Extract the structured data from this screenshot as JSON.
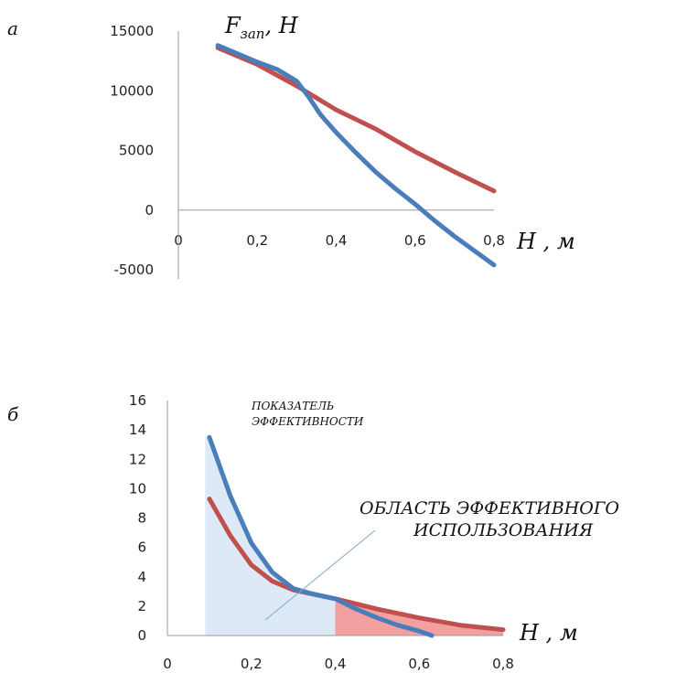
{
  "chart_data": [
    {
      "type": "line",
      "panel_label": "а",
      "ylabel_main": "F",
      "ylabel_sub": "зап",
      "ylabel_unit": ", Н",
      "xlabel": "H , м",
      "xlim": [
        0,
        0.8
      ],
      "ylim": [
        -5000,
        15000
      ],
      "x_ticks": [
        "0",
        "0,2",
        "0,4",
        "0,6",
        "0,8"
      ],
      "y_ticks": [
        "15000",
        "10000",
        "5000",
        "0",
        "-5000"
      ],
      "grid": false,
      "series": [
        {
          "color": "#4a7ebb",
          "x": [
            0.1,
            0.15,
            0.2,
            0.25,
            0.3,
            0.33,
            0.36,
            0.4,
            0.45,
            0.5,
            0.55,
            0.6,
            0.65,
            0.7,
            0.75,
            0.8
          ],
          "y": [
            13800,
            13100,
            12400,
            11800,
            10800,
            9500,
            8000,
            6500,
            4800,
            3200,
            1800,
            500,
            -900,
            -2200,
            -3400,
            -4600
          ]
        },
        {
          "color": "#c0504d",
          "x": [
            0.1,
            0.2,
            0.3,
            0.4,
            0.5,
            0.6,
            0.7,
            0.8
          ],
          "y": [
            13600,
            12200,
            10400,
            8400,
            6800,
            4900,
            3200,
            1600
          ]
        }
      ]
    },
    {
      "type": "area",
      "panel_label": "б",
      "xlabel": "H , м",
      "xlim": [
        0,
        0.8
      ],
      "ylim": [
        0,
        16
      ],
      "x_ticks": [
        "0",
        "0,2",
        "0,4",
        "0,6",
        "0,8"
      ],
      "y_ticks": [
        "16",
        "14",
        "12",
        "10",
        "8",
        "6",
        "4",
        "2",
        "0"
      ],
      "grid": false,
      "annotation_1": "ПОКАЗАТЕЛЬ",
      "annotation_2": "ЭФФЕКТИВНОСТИ",
      "annotation_3": "ОБЛАСТЬ ЭФФЕКТИВНОГО",
      "annotation_4": "ИСПОЛЬЗОВАНИЯ",
      "shaded_regions": [
        {
          "color": "#dde9f7",
          "x_from": 0.09,
          "x_to": 0.4
        },
        {
          "color": "#f2a0a0",
          "x_from": 0.4,
          "x_to": 0.8
        }
      ],
      "series": [
        {
          "color": "#4a7ebb",
          "x": [
            0.1,
            0.15,
            0.2,
            0.25,
            0.3,
            0.35,
            0.4,
            0.45,
            0.5,
            0.55,
            0.6,
            0.63
          ],
          "y": [
            13.5,
            9.5,
            6.3,
            4.3,
            3.2,
            2.8,
            2.5,
            1.8,
            1.2,
            0.7,
            0.3,
            0
          ]
        },
        {
          "color": "#c0504d",
          "x": [
            0.1,
            0.15,
            0.2,
            0.25,
            0.3,
            0.35,
            0.4,
            0.5,
            0.6,
            0.7,
            0.8
          ],
          "y": [
            9.3,
            6.8,
            4.8,
            3.7,
            3.1,
            2.8,
            2.5,
            1.8,
            1.2,
            0.7,
            0.4
          ]
        }
      ]
    }
  ]
}
